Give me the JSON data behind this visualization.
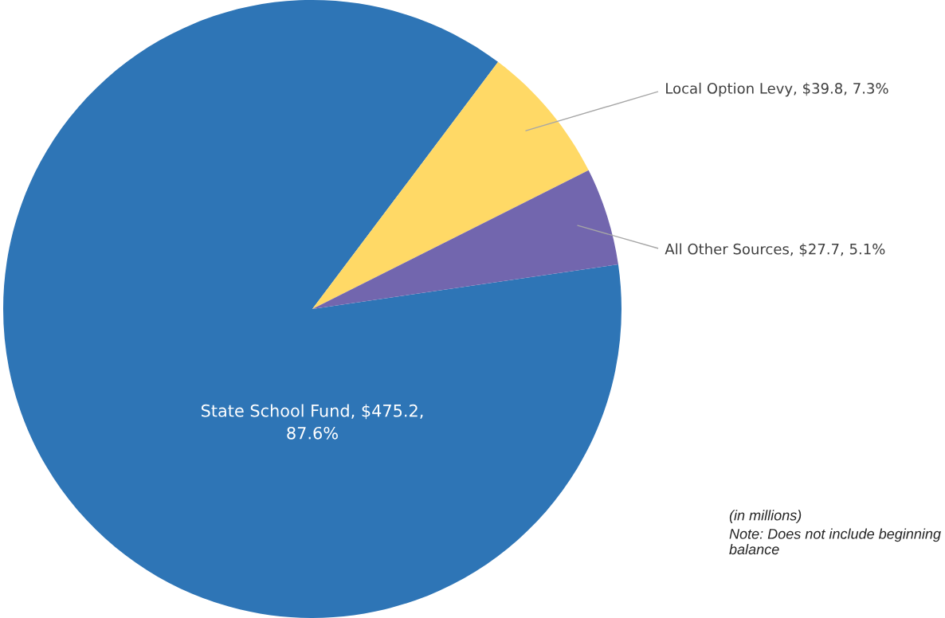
{
  "chart_data": {
    "type": "pie",
    "categories": [
      "State School Fund",
      "Local Option Levy",
      "All Other Sources"
    ],
    "values": [
      475.2,
      39.8,
      27.7
    ],
    "value_labels": [
      "$475.2, 87.6%",
      "$39.8, 7.3%",
      "$27.7, 5.1%"
    ],
    "colors": [
      "#2e75b6",
      "#ffd966",
      "#7266ae"
    ],
    "annotations": [
      "(in millions)",
      "Note: Does not include beginning balance"
    ],
    "legend": false
  }
}
